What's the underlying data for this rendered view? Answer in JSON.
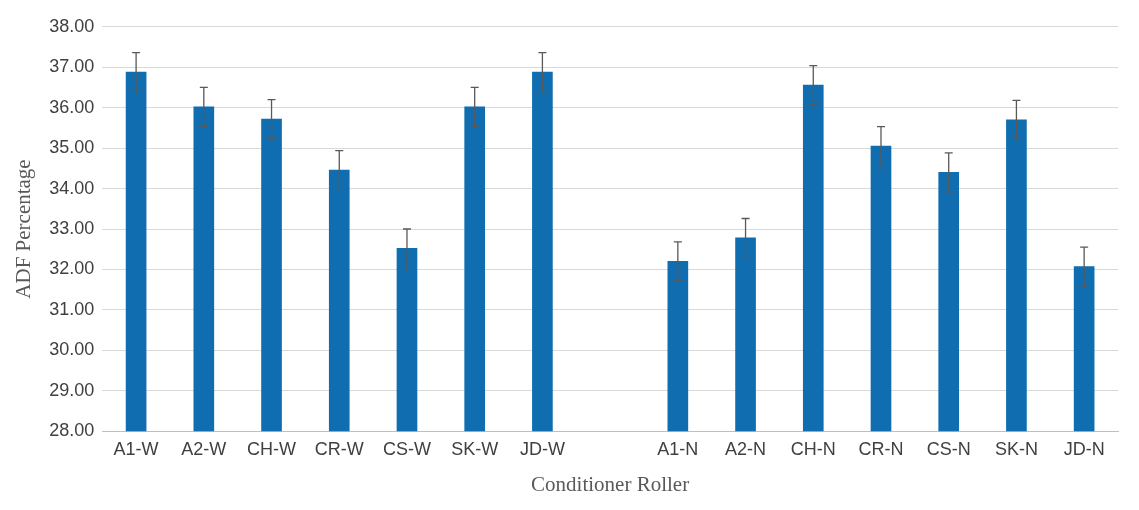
{
  "chart_data": {
    "type": "bar",
    "xlabel": "Conditioner Roller",
    "ylabel": "ADF Percentage",
    "categories": [
      "A1-W",
      "A2-W",
      "CH-W",
      "CR-W",
      "CS-W",
      "SK-W",
      "JD-W",
      null,
      "A1-N",
      "A2-N",
      "CH-N",
      "CR-N",
      "CS-N",
      "SK-N",
      "JD-N"
    ],
    "values": [
      36.88,
      36.02,
      35.72,
      34.46,
      32.52,
      36.02,
      36.88,
      null,
      32.2,
      32.78,
      36.56,
      35.05,
      34.4,
      35.7,
      32.07
    ],
    "errors": [
      0.48,
      0.48,
      0.48,
      0.48,
      0.48,
      0.48,
      0.48,
      null,
      0.48,
      0.48,
      0.48,
      0.48,
      0.48,
      0.48,
      0.48
    ],
    "color": "#0f6db0",
    "ylim": [
      28,
      38
    ],
    "yticks": [
      {
        "value": 28,
        "label": "28.00"
      },
      {
        "value": 29,
        "label": "29.00"
      },
      {
        "value": 30,
        "label": "30.00"
      },
      {
        "value": 31,
        "label": "31.00"
      },
      {
        "value": 32,
        "label": "32.00"
      },
      {
        "value": 33,
        "label": "33.00"
      },
      {
        "value": 34,
        "label": "34.00"
      },
      {
        "value": 35,
        "label": "35.00"
      },
      {
        "value": 36,
        "label": "36.00"
      },
      {
        "value": 37,
        "label": "37.00"
      },
      {
        "value": 38,
        "label": "38.00"
      }
    ],
    "grid": "y",
    "legend": false
  }
}
